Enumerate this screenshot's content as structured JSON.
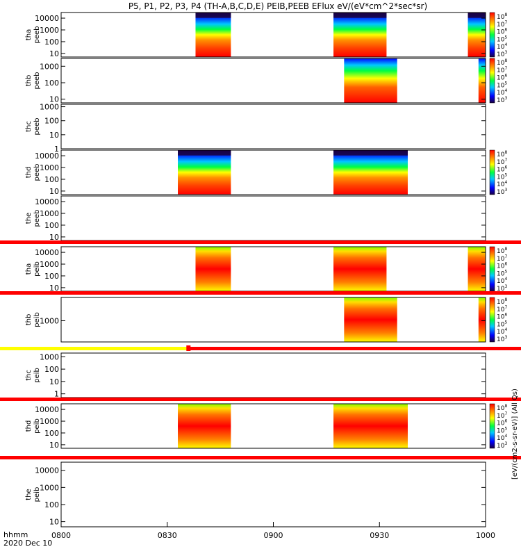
{
  "chart_data": {
    "type": "heatmap",
    "title": "P5, P1, P2, P3, P4 (TH-A,B,C,D,E) PEIB,PEEB EFlux eV/(eV*cm^2*sec*sr)",
    "time_axis": {
      "label_line1": "hhmm",
      "label_line2": "2020 Dec 10",
      "range_hhmm": [
        800,
        1000
      ],
      "ticks": [
        "0800",
        "0830",
        "0900",
        "0930",
        "1000"
      ]
    },
    "colorbar_label": "[eV/(cm2-s-sr-eV)] (All Qs)",
    "palette": [
      "#1a0040",
      "#0000ff",
      "#00c8ff",
      "#00ff40",
      "#ffff00",
      "#ff8000",
      "#ff0000"
    ],
    "panels": [
      {
        "probe": "tha",
        "species": "peeb",
        "ylabel": [
          "tha",
          "peeb"
        ],
        "yticks": [
          "10",
          "100",
          "1000",
          "10000"
        ],
        "ylim": [
          5,
          30000
        ],
        "log": true,
        "intervals": [
          {
            "start": 838,
            "end": 848,
            "kind": "electron"
          },
          {
            "start": 917,
            "end": 932,
            "kind": "electron"
          },
          {
            "start": 955,
            "end": 1000,
            "kind": "electron"
          }
        ],
        "colorbar": true,
        "cbar_ticks": [
          "10^8",
          "10^7",
          "10^6",
          "10^5",
          "10^4",
          "10^3"
        ],
        "marker_bar": null
      },
      {
        "probe": "thb",
        "species": "peeb",
        "ylabel": [
          "thb",
          "peeb"
        ],
        "yticks": [
          "10",
          "100",
          "1000"
        ],
        "ylim": [
          6,
          3000
        ],
        "log": true,
        "intervals": [
          {
            "start": 920,
            "end": 935,
            "kind": "hot"
          },
          {
            "start": 958,
            "end": 1000,
            "kind": "hot"
          }
        ],
        "colorbar": true,
        "cbar_ticks": [
          "10^8",
          "10^7",
          "10^6",
          "10^5",
          "10^4",
          "10^3"
        ],
        "marker_bar": null
      },
      {
        "probe": "thc",
        "species": "peeb",
        "ylabel": [
          "thc",
          "peeb"
        ],
        "yticks": [
          "1",
          "10",
          "100",
          "1000"
        ],
        "ylim": [
          1,
          1500
        ],
        "log": true,
        "intervals": [],
        "colorbar": false,
        "cbar_ticks": [],
        "marker_bar": null
      },
      {
        "probe": "thd",
        "species": "peeb",
        "ylabel": [
          "thd",
          "peeb"
        ],
        "yticks": [
          "10",
          "100",
          "1000",
          "10000"
        ],
        "ylim": [
          5,
          30000
        ],
        "log": true,
        "intervals": [
          {
            "start": 833,
            "end": 848,
            "kind": "electron"
          },
          {
            "start": 917,
            "end": 938,
            "kind": "electron"
          }
        ],
        "colorbar": true,
        "cbar_ticks": [
          "10^8",
          "10^7",
          "10^6",
          "10^5",
          "10^4",
          "10^3"
        ],
        "marker_bar": null
      },
      {
        "probe": "the",
        "species": "peeb",
        "ylabel": [
          "the",
          "peeb"
        ],
        "yticks": [
          "10",
          "100",
          "1000",
          "10000"
        ],
        "ylim": [
          5,
          30000
        ],
        "log": true,
        "intervals": [],
        "colorbar": false,
        "cbar_ticks": [],
        "marker_bar": null
      },
      {
        "probe": "tha",
        "species": "peib",
        "ylabel": [
          "tha",
          "peib"
        ],
        "yticks": [
          "10",
          "100",
          "1000",
          "10000"
        ],
        "ylim": [
          5,
          30000
        ],
        "log": true,
        "intervals": [
          {
            "start": 838,
            "end": 848,
            "kind": "ion"
          },
          {
            "start": 917,
            "end": 932,
            "kind": "ion"
          },
          {
            "start": 955,
            "end": 1000,
            "kind": "ion"
          }
        ],
        "colorbar": true,
        "cbar_ticks": [
          "10^8",
          "10^7",
          "10^6",
          "10^5",
          "10^4",
          "10^3"
        ],
        "marker_bar": "red"
      },
      {
        "probe": "thb",
        "species": "peib",
        "ylabel": [
          "thb",
          "peib"
        ],
        "yticks": [
          "1000"
        ],
        "ylim": [
          150,
          8000
        ],
        "log": true,
        "intervals": [
          {
            "start": 920,
            "end": 935,
            "kind": "ion"
          },
          {
            "start": 958,
            "end": 1000,
            "kind": "ion"
          }
        ],
        "colorbar": true,
        "cbar_ticks": [
          "10^8",
          "10^7",
          "10^6",
          "10^5",
          "10^4",
          "10^3"
        ],
        "marker_bar": "red"
      },
      {
        "probe": "thc",
        "species": "peib",
        "ylabel": [
          "thc",
          "peib"
        ],
        "yticks": [
          "1",
          "10",
          "100",
          "1000"
        ],
        "ylim": [
          0.5,
          2000
        ],
        "log": true,
        "intervals": [],
        "colorbar": false,
        "cbar_ticks": [],
        "marker_bar": "yellow-red"
      },
      {
        "probe": "thd",
        "species": "peib",
        "ylabel": [
          "thd",
          "peib"
        ],
        "yticks": [
          "10",
          "100",
          "1000",
          "10000"
        ],
        "ylim": [
          5,
          30000
        ],
        "log": true,
        "intervals": [
          {
            "start": 833,
            "end": 848,
            "kind": "ion"
          },
          {
            "start": 917,
            "end": 938,
            "kind": "ion"
          }
        ],
        "colorbar": true,
        "cbar_ticks": [
          "10^8",
          "10^7",
          "10^6",
          "10^5",
          "10^4",
          "10^3"
        ],
        "marker_bar": "red"
      },
      {
        "probe": "the",
        "species": "peib",
        "ylabel": [
          "the",
          "peib"
        ],
        "yticks": [
          "10",
          "100",
          "1000",
          "10000"
        ],
        "ylim": [
          5,
          30000
        ],
        "log": true,
        "intervals": [],
        "colorbar": false,
        "cbar_ticks": [],
        "marker_bar": "red"
      }
    ]
  }
}
